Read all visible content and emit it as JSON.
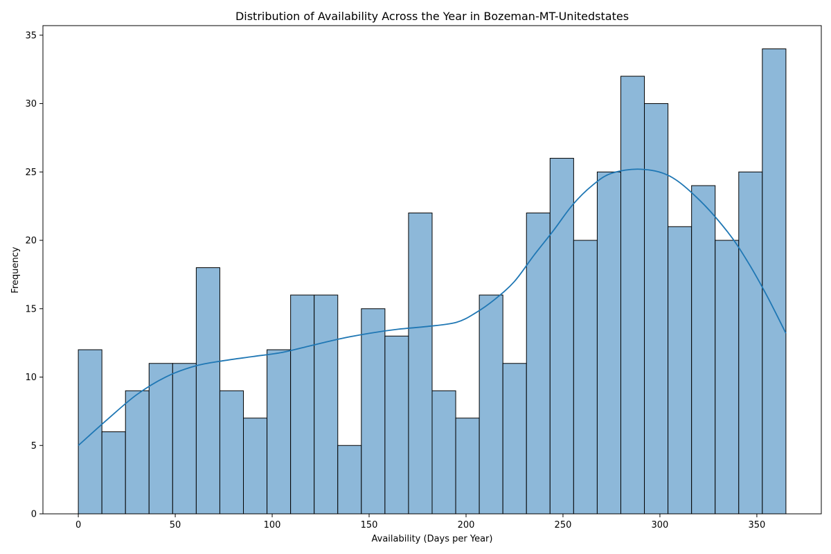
{
  "chart_data": {
    "type": "bar",
    "title": "Distribution of Availability Across the Year in Bozeman-MT-Unitedstates",
    "xlabel": "Availability (Days per Year)",
    "ylabel": "Frequency",
    "xlim": [
      -18.25,
      383.25
    ],
    "ylim": [
      0,
      35.7
    ],
    "xticks": [
      0,
      50,
      100,
      150,
      200,
      250,
      300,
      350
    ],
    "yticks": [
      0,
      5,
      10,
      15,
      20,
      25,
      30,
      35
    ],
    "bin_start": 0,
    "bin_end": 365,
    "counts": [
      12,
      6,
      9,
      11,
      11,
      18,
      9,
      7,
      12,
      16,
      16,
      5,
      15,
      13,
      22,
      9,
      7,
      16,
      11,
      22,
      26,
      20,
      25,
      32,
      30,
      21,
      24,
      20,
      25,
      34
    ],
    "kde": {
      "x": [
        0,
        15,
        30,
        45,
        60,
        75,
        90,
        105,
        120,
        135,
        150,
        165,
        180,
        195,
        205,
        215,
        225,
        235,
        245,
        255,
        265,
        275,
        290,
        305,
        320,
        335,
        345,
        355,
        365
      ],
      "y": [
        5.0,
        6.9,
        8.7,
        10.0,
        10.8,
        11.2,
        11.5,
        11.8,
        12.3,
        12.8,
        13.2,
        13.5,
        13.7,
        14.0,
        14.7,
        15.7,
        17.0,
        18.9,
        20.7,
        22.6,
        24.0,
        24.9,
        25.2,
        24.7,
        23.0,
        20.6,
        18.5,
        16.0,
        13.2
      ]
    },
    "grid": false,
    "legend": "none",
    "colors": {
      "bar_fill": "#8db8d9",
      "bar_edge": "#000000",
      "kde_line": "#1f77b4"
    }
  }
}
